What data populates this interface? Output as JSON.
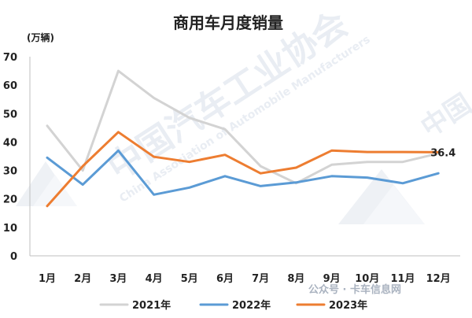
{
  "chart_data": {
    "type": "line",
    "title": "商用车月度销量",
    "unit_label": "(万辆)",
    "categories": [
      "1月",
      "2月",
      "3月",
      "4月",
      "5月",
      "6月",
      "7月",
      "8月",
      "9月",
      "10月",
      "11月",
      "12月"
    ],
    "ylim": [
      0,
      70
    ],
    "yticks": [
      0,
      10,
      20,
      30,
      40,
      50,
      60,
      70
    ],
    "grid": false,
    "legend_position": "bottom",
    "series": [
      {
        "name": "2021年",
        "color": "#d3d3d3",
        "values": [
          45.7,
          30.0,
          65.0,
          55.5,
          48.5,
          44.5,
          31.5,
          25.5,
          32.0,
          33.0,
          33.0,
          36.0
        ]
      },
      {
        "name": "2022年",
        "color": "#5b9bd5",
        "values": [
          34.5,
          25.0,
          37.0,
          21.5,
          24.0,
          28.0,
          24.5,
          25.8,
          28.0,
          27.5,
          25.5,
          29.0
        ]
      },
      {
        "name": "2023年",
        "color": "#ed7d31",
        "values": [
          17.5,
          31.5,
          43.5,
          34.8,
          33.0,
          35.5,
          29.0,
          31.0,
          37.0,
          36.5,
          36.5,
          36.4
        ]
      }
    ],
    "annotation": {
      "series": 2,
      "index": 11,
      "text": "36.4"
    }
  },
  "watermark": {
    "main_text": "中国汽车工业协会",
    "sub_text": "China Association of Automobile Manufacturers",
    "side_text": "中国",
    "wechat_text": "公众号 · 卡车信息网"
  }
}
